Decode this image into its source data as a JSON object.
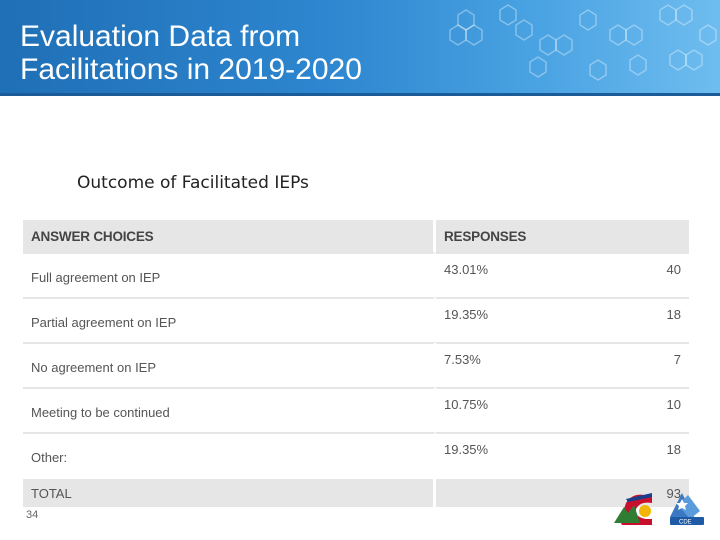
{
  "slide": {
    "title_line1": "Evaluation Data from",
    "title_line2": "Facilitations in 2019-2020",
    "caption": "Outcome of Facilitated IEPs",
    "page_number": "34"
  },
  "table": {
    "headers": {
      "answer": "ANSWER CHOICES",
      "responses": "RESPONSES"
    },
    "rows": [
      {
        "answer": "Full agreement on IEP",
        "percent": "43.01%",
        "count": "40"
      },
      {
        "answer": "Partial agreement on IEP",
        "percent": "19.35%",
        "count": "18"
      },
      {
        "answer": "No agreement on IEP",
        "percent": "7.53%",
        "count": "7"
      },
      {
        "answer": "Meeting to be continued",
        "percent": "10.75%",
        "count": "10"
      },
      {
        "answer": "Other:",
        "percent": "19.35%",
        "count": "18"
      }
    ],
    "total": {
      "label": "TOTAL",
      "count": "93"
    }
  },
  "colors": {
    "banner_dark": "#1f6fb6",
    "banner_light": "#6fbdf0",
    "header_gray": "#e6e6e6"
  }
}
